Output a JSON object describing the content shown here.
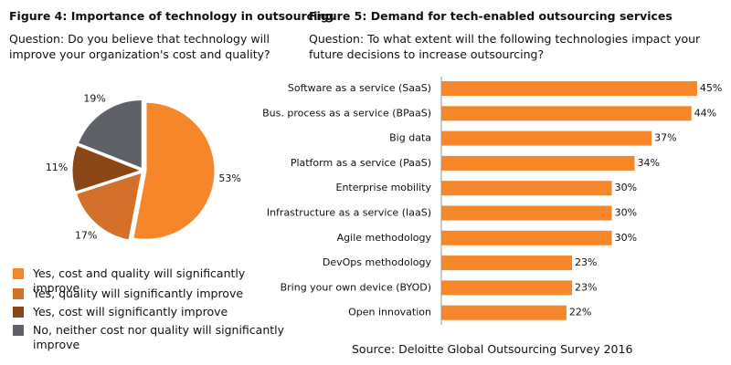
{
  "chart_data": [
    {
      "type": "pie",
      "title": "Figure 4: Importance of technology in outsourcing",
      "subtitle": "Question: Do you believe that technology will improve your organization's cost and quality?",
      "categories": [
        "Yes, cost and quality will significantly improve",
        "Yes, quality will significantly improve",
        "Yes, cost will significantly improve",
        "No, neither cost nor quality will significantly improve"
      ],
      "values": [
        53,
        17,
        11,
        19
      ],
      "value_labels": [
        "53%",
        "17%",
        "11%",
        "19%"
      ],
      "colors": [
        "#f5862a",
        "#d4702a",
        "#8a4614",
        "#5f6168"
      ]
    },
    {
      "type": "hbar",
      "title": "Figure 5: Demand for tech-enabled outsourcing services",
      "subtitle": "Question: To what extent will the following technologies impact your future decisions to increase outsourcing?",
      "categories": [
        "Software as a service (SaaS)",
        "Bus. process as a service (BPaaS)",
        "Big data",
        "Platform as a service (PaaS)",
        "Enterprise mobility",
        "Infrastructure as a service (IaaS)",
        "Agile methodology",
        "DevOps methodology",
        "Bring your own device (BYOD)",
        "Open innovation"
      ],
      "values": [
        45,
        44,
        37,
        34,
        30,
        30,
        30,
        23,
        23,
        22
      ],
      "value_labels": [
        "45%",
        "44%",
        "37%",
        "34%",
        "30%",
        "30%",
        "30%",
        "23%",
        "23%",
        "22%"
      ],
      "color": "#f5862a",
      "source": "Source: Deloitte Global Outsourcing Survey 2016"
    }
  ]
}
